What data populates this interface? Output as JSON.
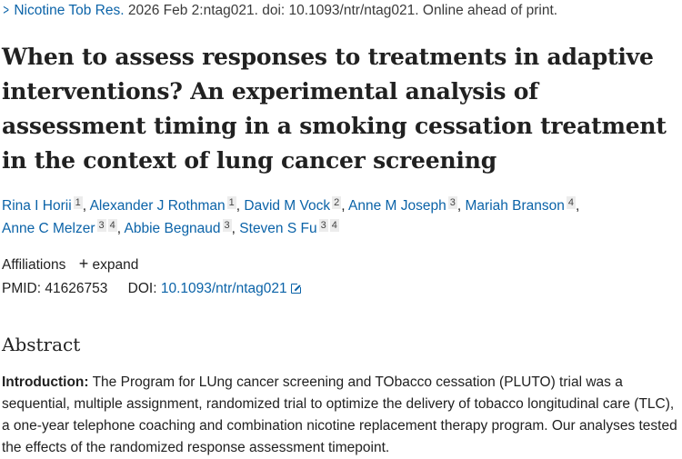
{
  "citation": {
    "journal": "Nicotine Tob Res.",
    "rest": "2026 Feb 2:ntag021. doi: 10.1093/ntr/ntag021. Online ahead of print."
  },
  "title": "When to assess responses to treatments in adaptive interventions? An experimental analysis of assessment timing in a smoking cessation treatment in the context of lung cancer screening",
  "authors": [
    {
      "name": "Rina I Horii",
      "aff": [
        "1"
      ]
    },
    {
      "name": "Alexander J Rothman",
      "aff": [
        "1"
      ]
    },
    {
      "name": "David M Vock",
      "aff": [
        "2"
      ]
    },
    {
      "name": "Anne M Joseph",
      "aff": [
        "3"
      ]
    },
    {
      "name": "Mariah Branson",
      "aff": [
        "4"
      ]
    },
    {
      "name": "Anne C Melzer",
      "aff": [
        "3",
        "4"
      ]
    },
    {
      "name": "Abbie Begnaud",
      "aff": [
        "3"
      ]
    },
    {
      "name": "Steven S Fu",
      "aff": [
        "3",
        "4"
      ]
    }
  ],
  "affiliations": {
    "label": "Affiliations",
    "expand": "expand"
  },
  "ids": {
    "pmid_label": "PMID:",
    "pmid": "41626753",
    "doi_label": "DOI:",
    "doi": "10.1093/ntr/ntag021"
  },
  "abstract": {
    "heading": "Abstract",
    "intro_label": "Introduction:",
    "intro_text": "The Program for LUng cancer screening and TObacco cessation (PLUTO) trial was a sequential, multiple assignment, randomized trial to optimize the delivery of tobacco longitudinal care (TLC), a one-year telephone coaching and combination nicotine replacement therapy program. Our analyses tested the effects of the randomized response assessment timepoint."
  }
}
